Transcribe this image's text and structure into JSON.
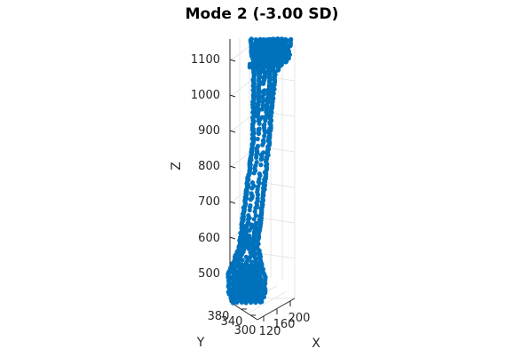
{
  "chart_data": {
    "type": "scatter",
    "title": "Mode 2 (-3.00 SD)",
    "projection": "3d",
    "xlabel": "X",
    "ylabel": "Y",
    "zlabel": "Z",
    "x_ticks": [
      120,
      160,
      200
    ],
    "y_ticks": [
      300,
      340,
      380
    ],
    "z_ticks": [
      500,
      600,
      700,
      800,
      900,
      1000,
      1100
    ],
    "xlim": [
      105,
      210
    ],
    "ylim": [
      290,
      395
    ],
    "zlim": [
      440,
      1160
    ],
    "grid": true,
    "marker_color": "#0072BD",
    "description_points": [
      {
        "x": 150,
        "y": 340,
        "z": 1150
      },
      {
        "x": 160,
        "y": 345,
        "z": 1120
      },
      {
        "x": 145,
        "y": 350,
        "z": 1080
      },
      {
        "x": 150,
        "y": 345,
        "z": 1000
      },
      {
        "x": 150,
        "y": 345,
        "z": 900
      },
      {
        "x": 148,
        "y": 345,
        "z": 800
      },
      {
        "x": 145,
        "y": 345,
        "z": 700
      },
      {
        "x": 140,
        "y": 345,
        "z": 600
      },
      {
        "x": 135,
        "y": 345,
        "z": 520
      },
      {
        "x": 130,
        "y": 340,
        "z": 470
      }
    ]
  }
}
